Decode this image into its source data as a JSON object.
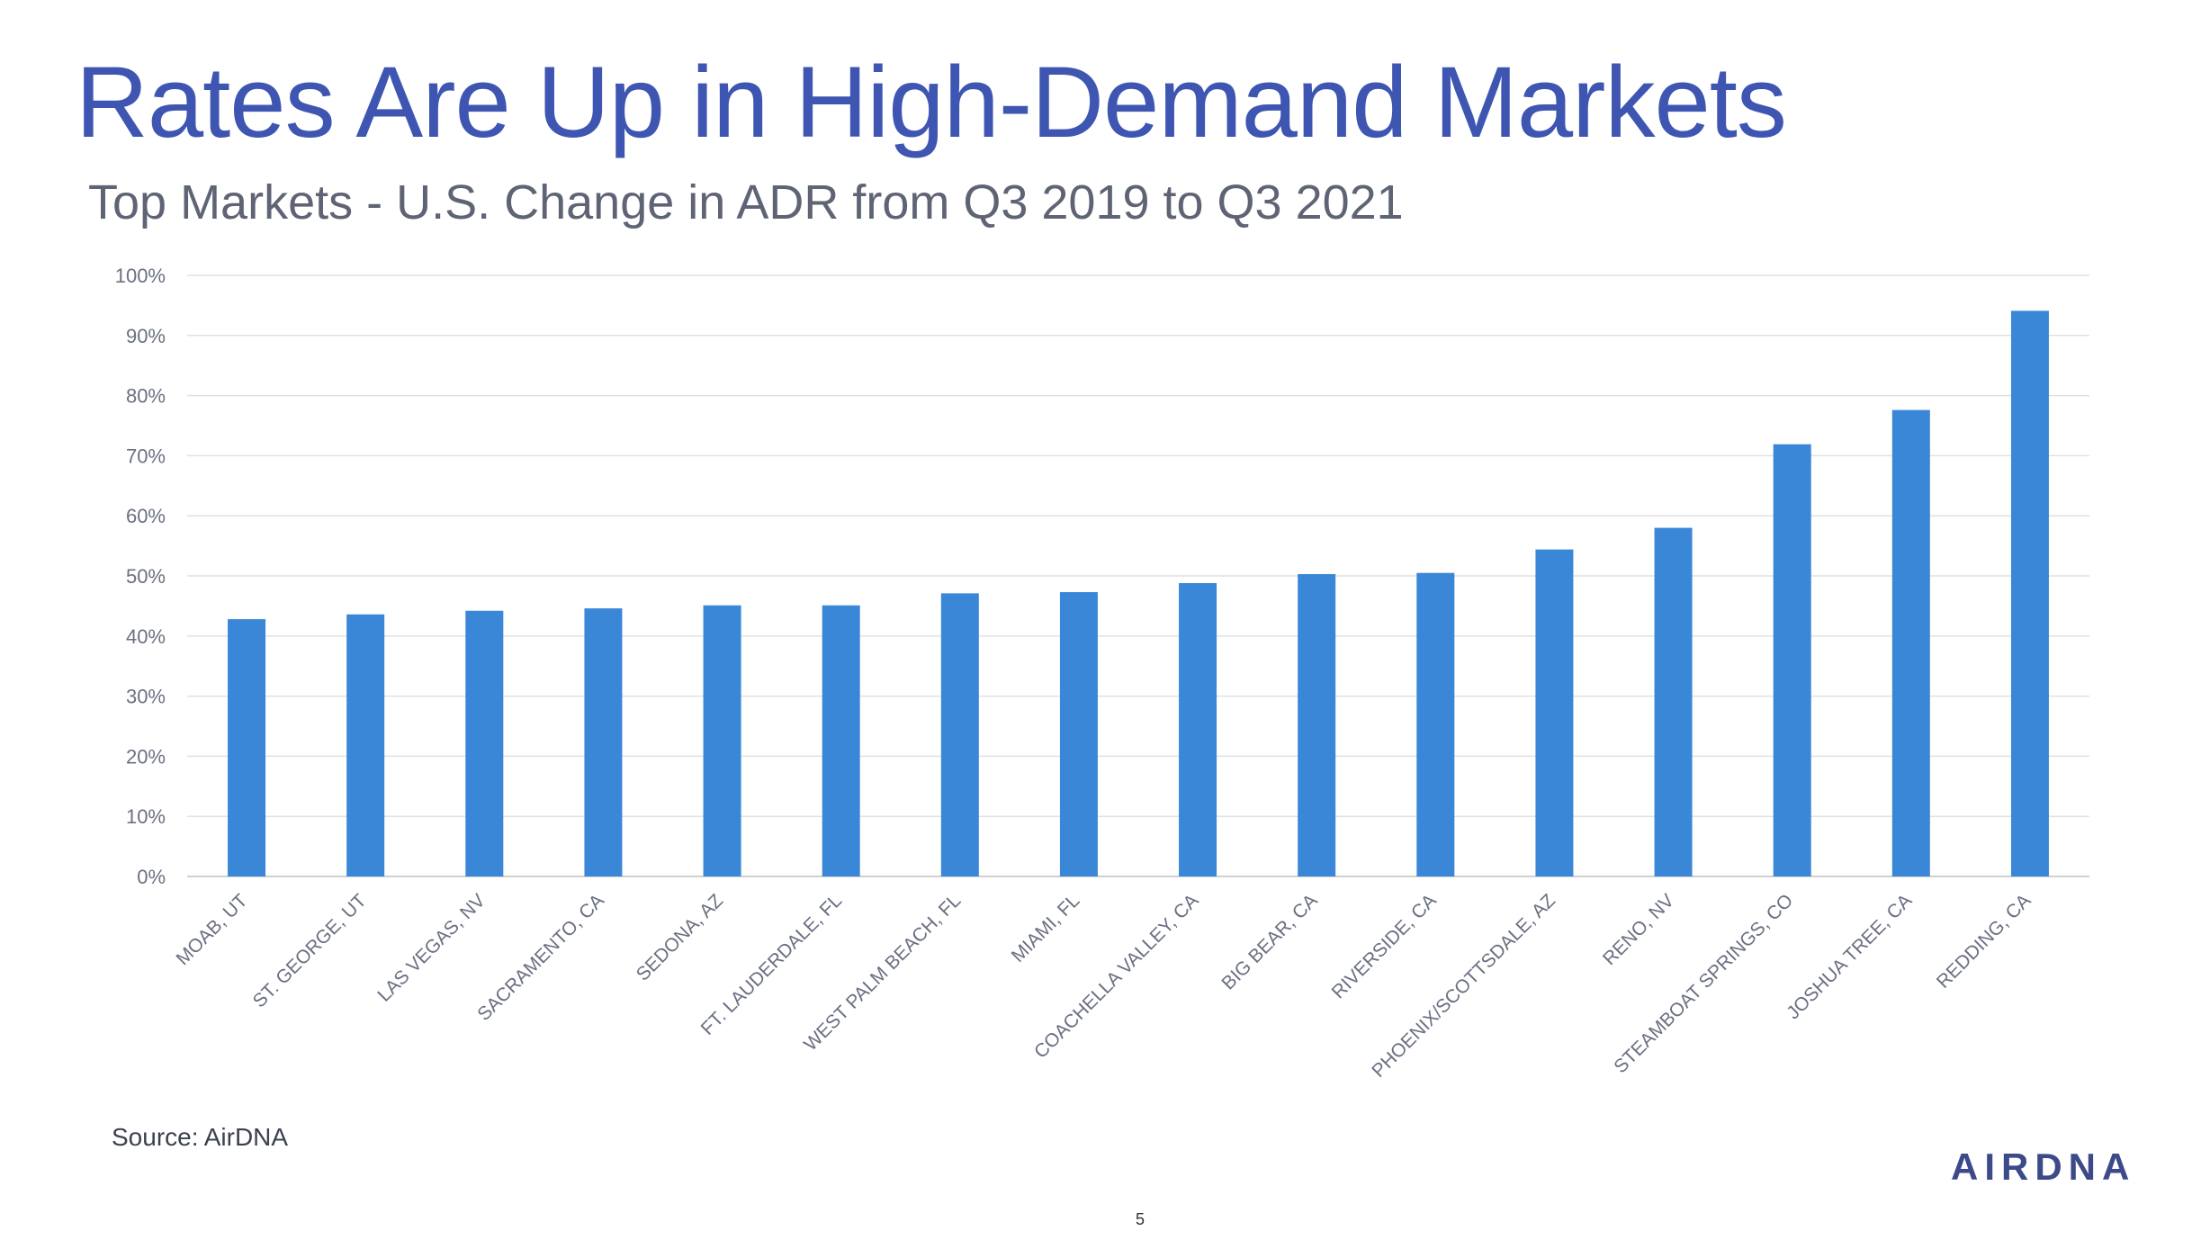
{
  "header": {
    "title": "Rates Are Up in High-Demand Markets",
    "subtitle": "Top Markets - U.S. Change in ADR from Q3 2019 to Q3 2021"
  },
  "chart_data": {
    "type": "bar",
    "title": "Top Markets - U.S. Change in ADR from Q3 2019 to Q3 2021",
    "xlabel": "",
    "ylabel": "",
    "ylim": [
      0,
      100
    ],
    "y_ticks": [
      "0%",
      "10%",
      "20%",
      "30%",
      "40%",
      "50%",
      "60%",
      "70%",
      "80%",
      "90%",
      "100%"
    ],
    "categories": [
      "MOAB, UT",
      "ST. GEORGE, UT",
      "LAS VEGAS, NV",
      "SACRAMENTO, CA",
      "SEDONA, AZ",
      "FT. LAUDERDALE, FL",
      "WEST PALM BEACH, FL",
      "MIAMI, FL",
      "COACHELLA VALLEY, CA",
      "BIG BEAR, CA",
      "RIVERSIDE, CA",
      "PHOENIX/SCOTTSDALE, AZ",
      "RENO, NV",
      "STEAMBOAT SPRINGS, CO",
      "JOSHUA TREE, CA",
      "REDDING, CA"
    ],
    "values": [
      42.8,
      43.6,
      44.2,
      44.6,
      45.1,
      45.1,
      47.1,
      47.3,
      48.8,
      50.3,
      50.5,
      54.4,
      58.0,
      71.9,
      77.6,
      94.1
    ],
    "grid": true,
    "legend": "none",
    "colors": {
      "bar": "#3a87d8",
      "grid": "#e1e1e1",
      "tick_text": "#6b7082",
      "axis": "#d0d0d0"
    }
  },
  "footer": {
    "source": "Source: AirDNA",
    "logo_text": "AIRDNA",
    "page_number": "5"
  }
}
